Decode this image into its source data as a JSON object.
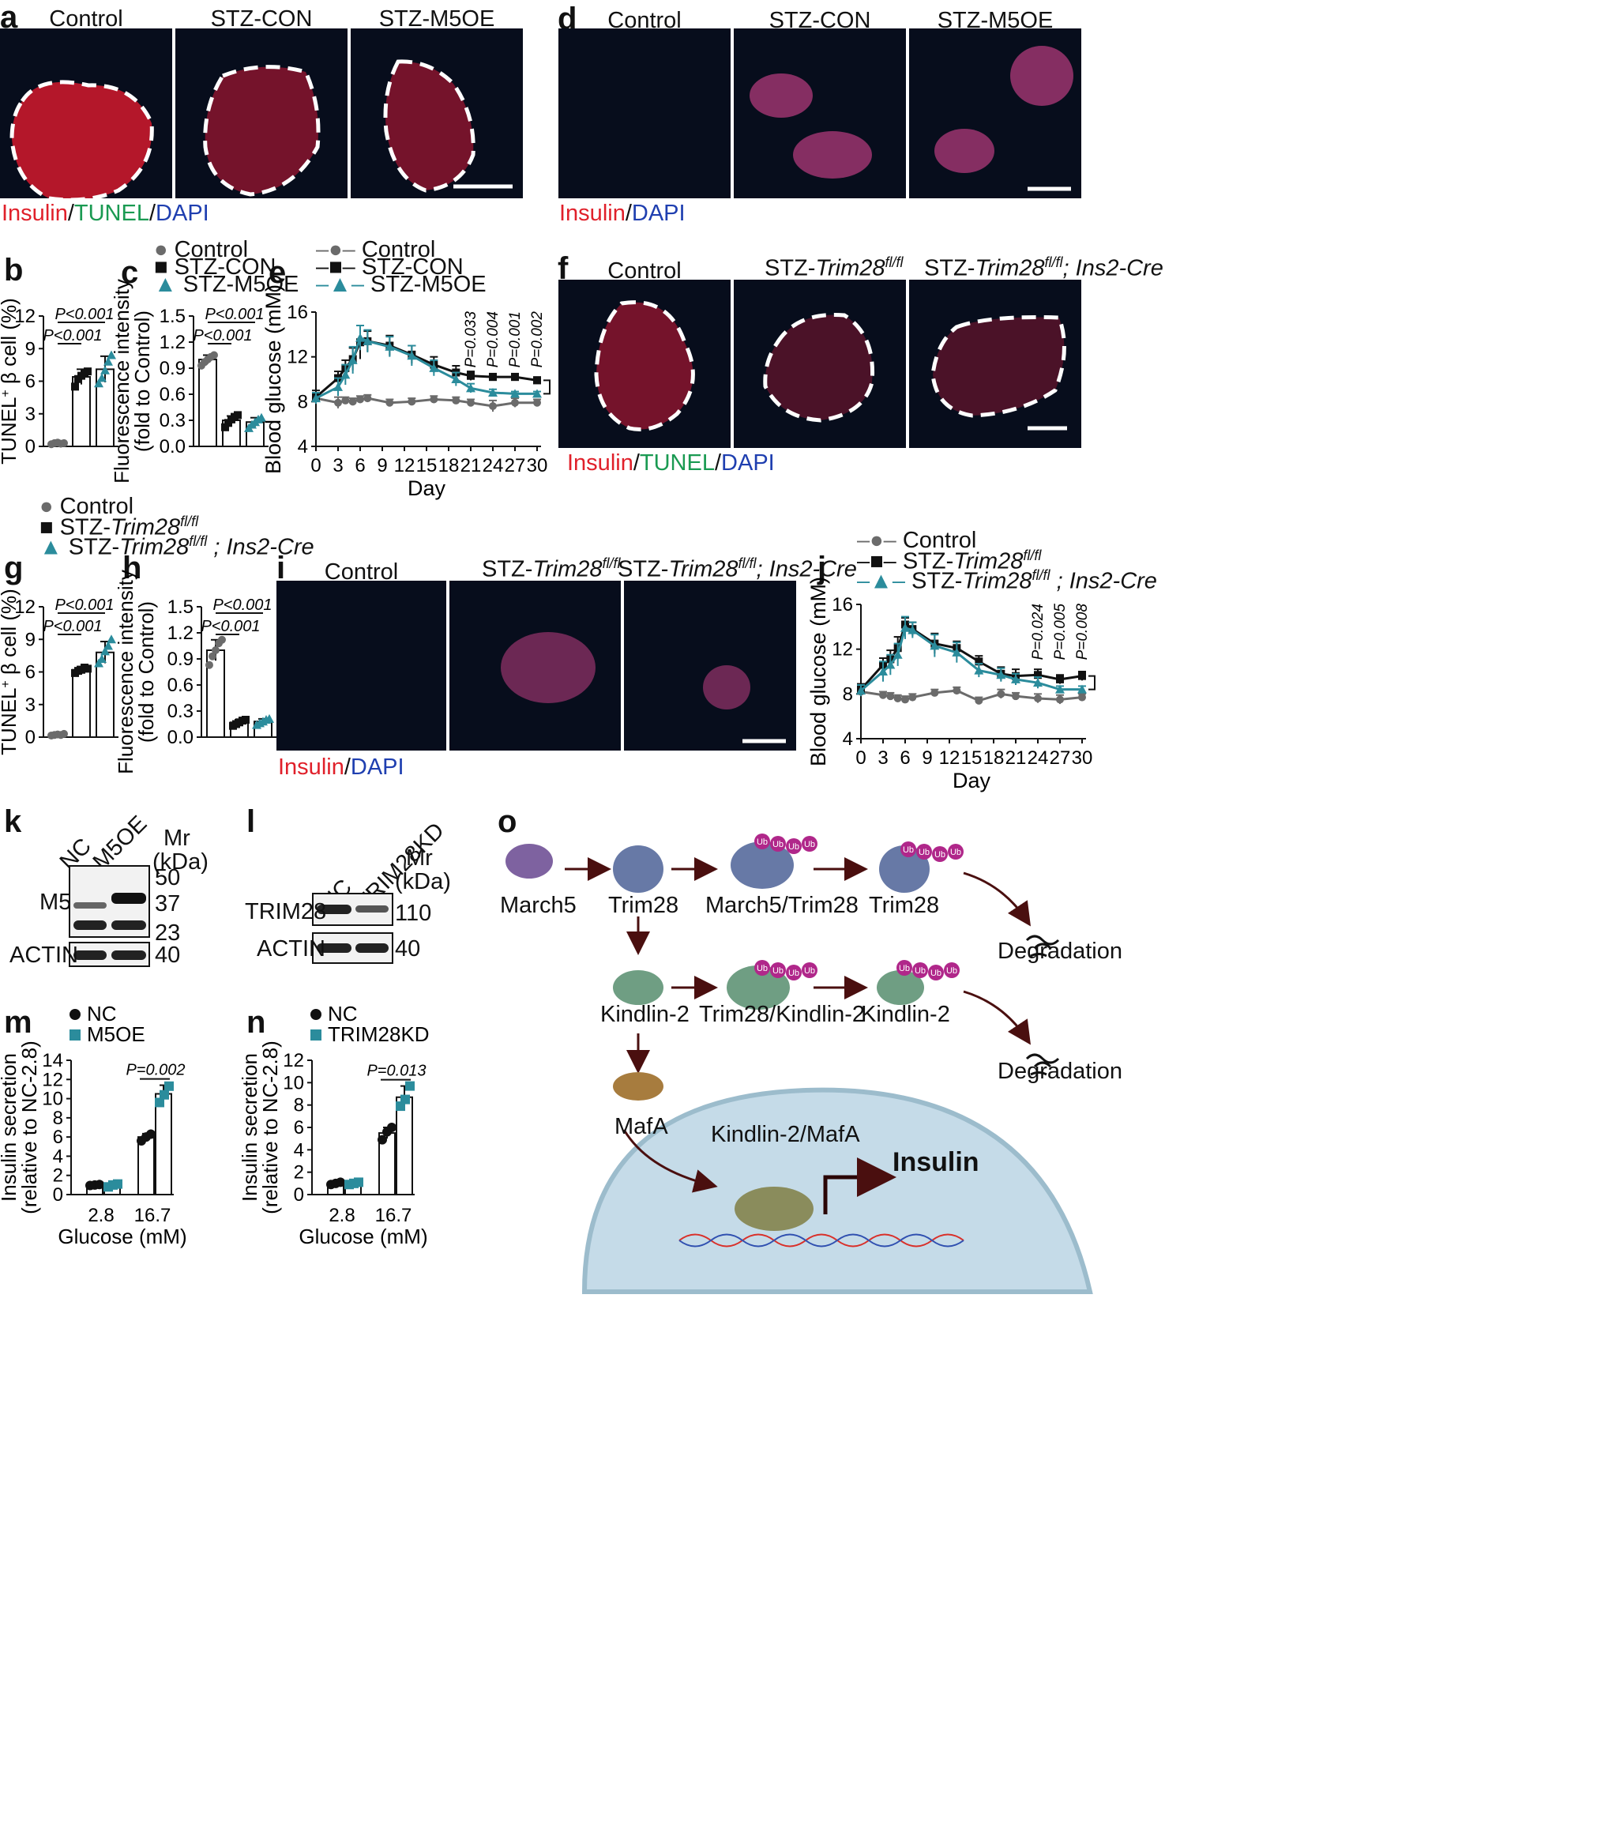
{
  "panel_letters": {
    "a": "a",
    "b": "b",
    "c": "c",
    "d": "d",
    "e": "e",
    "f": "f",
    "g": "g",
    "h": "h",
    "i": "i",
    "j": "j",
    "k": "k",
    "l": "l",
    "m": "m",
    "n": "n",
    "o": "o"
  },
  "panel_a": {
    "titles": [
      "Control",
      "STZ-CON",
      "STZ-M5OE"
    ],
    "stain": [
      {
        "text": "Insulin",
        "color": "#e0202a"
      },
      {
        "text": "/",
        "color": "#111111"
      },
      {
        "text": "TUNEL",
        "color": "#1a9a52"
      },
      {
        "text": "/",
        "color": "#111111"
      },
      {
        "text": "DAPI",
        "color": "#1f3fb0"
      }
    ]
  },
  "panel_d": {
    "titles": [
      "Control",
      "STZ-CON",
      "STZ-M5OE"
    ],
    "stain": [
      {
        "text": "Insulin",
        "color": "#e0202a"
      },
      {
        "text": "/",
        "color": "#111111"
      },
      {
        "text": "DAPI",
        "color": "#1f3fb0"
      }
    ]
  },
  "panel_f": {
    "title_control": "Control",
    "title_2_prefix": "STZ-",
    "title_2_italic": "Trim28",
    "title_2_sup": "fl/fl",
    "title_3_prefix": "STZ-",
    "title_3_italic": "Trim28",
    "title_3_sup": "fl/fl",
    "title_3_suffix": "; Ins2-Cre",
    "stain": [
      {
        "text": "Insulin",
        "color": "#e0202a"
      },
      {
        "text": "/",
        "color": "#111111"
      },
      {
        "text": "TUNEL",
        "color": "#1a9a52"
      },
      {
        "text": "/",
        "color": "#111111"
      },
      {
        "text": "DAPI",
        "color": "#1f3fb0"
      }
    ]
  },
  "panel_i": {
    "title_control": "Control",
    "title_2_prefix": "STZ-",
    "title_2_italic": "Trim28",
    "title_2_sup": "fl/fl",
    "title_3_prefix": "STZ-",
    "title_3_italic": "Trim28",
    "title_3_sup": "fl/fl",
    "title_3_suffix": "; Ins2-Cre",
    "stain": [
      {
        "text": "Insulin",
        "color": "#e0202a"
      },
      {
        "text": "/",
        "color": "#111111"
      },
      {
        "text": "DAPI",
        "color": "#1f3fb0"
      }
    ]
  },
  "legend_bc": [
    "Control",
    "STZ-CON",
    "STZ-M5OE"
  ],
  "legend_e": [
    "Control",
    "STZ-CON",
    "STZ-M5OE"
  ],
  "legend_gh": {
    "control": "Control",
    "g2_prefix": "STZ-",
    "g2_italic": "Trim28",
    "g2_sup": "fl/fl",
    "g3_prefix": "STZ-",
    "g3_italic": "Trim28",
    "g3_sup": "fl/fl",
    "g3_suffix": " ; Ins2-Cre"
  },
  "legend_j": {
    "control": "Control",
    "j2_prefix": "STZ-",
    "j2_italic": "Trim28",
    "j2_sup": "fl/fl",
    "j3_prefix": "STZ-",
    "j3_italic": "Trim28",
    "j3_sup": "fl/fl",
    "j3_suffix": " ; Ins2-Cre"
  },
  "colors": {
    "control": "#6b6b6b",
    "stz": "#111111",
    "treat": "#2b8c9c",
    "arrow": "#4a0f0f",
    "ub": "#b0278a",
    "cell": "#c5dbe8",
    "cell_edge": "#9cbccc"
  },
  "chart_data": [
    {
      "panel": "b",
      "type": "bar",
      "title": "",
      "ylabel": "TUNEL+ β cell (%)",
      "ylabel_main": "TUNEL",
      "ylabel_sup": "+",
      "ylabel_rest": " β cell (%)",
      "categories": [
        "Control",
        "STZ-CON",
        "STZ-M5OE"
      ],
      "values": [
        0.3,
        6.4,
        7.1
      ],
      "errors": [
        0.1,
        0.7,
        1.2
      ],
      "points": [
        [
          0.2,
          0.3,
          0.35,
          0.25,
          0.3
        ],
        [
          5.5,
          6.2,
          6.5,
          6.8,
          6.9
        ],
        [
          5.8,
          6.3,
          7.0,
          7.8,
          8.4
        ]
      ],
      "ylim": [
        0,
        12
      ],
      "yticks": [
        "0",
        "3",
        "6",
        "9",
        "12"
      ],
      "pvalues": [
        {
          "text": "P<0.001",
          "from": 0,
          "to": 1
        },
        {
          "text": "P<0.001",
          "from": 0,
          "to": 2
        }
      ]
    },
    {
      "panel": "c",
      "type": "bar",
      "title": "",
      "ylabel": "Fluorescence intensity (fold to Control)",
      "ylabel_line1": "Fluorescence intensity",
      "ylabel_line2": "(fold to Control)",
      "categories": [
        "Control",
        "STZ-CON",
        "STZ-M5OE"
      ],
      "values": [
        1.0,
        0.3,
        0.28
      ],
      "errors": [
        0.05,
        0.05,
        0.05
      ],
      "points": [
        [
          0.93,
          0.97,
          1.0,
          1.03,
          1.05
        ],
        [
          0.22,
          0.27,
          0.31,
          0.34,
          0.36
        ],
        [
          0.21,
          0.25,
          0.28,
          0.31,
          0.33
        ]
      ],
      "ylim": [
        0,
        1.5
      ],
      "yticks": [
        "0.0",
        "0.3",
        "0.6",
        "0.9",
        "1.2",
        "1.5"
      ],
      "pvalues": [
        {
          "text": "P<0.001",
          "from": 0,
          "to": 1
        },
        {
          "text": "P<0.001",
          "from": 0,
          "to": 2
        }
      ]
    },
    {
      "panel": "e",
      "type": "line",
      "title": "",
      "xlabel": "Day",
      "ylabel": "Blood glucose (mM)",
      "x": [
        0,
        3,
        4,
        5,
        6,
        7,
        10,
        13,
        16,
        19,
        21,
        24,
        27,
        30
      ],
      "xticks": [
        "0",
        "3",
        "6",
        "9",
        "12",
        "15",
        "18",
        "21",
        "24",
        "27",
        "30"
      ],
      "yticks": [
        "4",
        "8",
        "12",
        "16"
      ],
      "ylim": [
        4,
        16
      ],
      "series": [
        {
          "name": "Control",
          "values": [
            8.3,
            7.9,
            8.1,
            8.0,
            8.2,
            8.3,
            7.9,
            8.0,
            8.2,
            8.1,
            7.9,
            7.6,
            7.9,
            7.9
          ],
          "err": [
            0.3,
            0.5,
            0.3,
            0.3,
            0.3,
            0.3,
            0.3,
            0.3,
            0.3,
            0.3,
            0.3,
            0.5,
            0.4,
            0.3
          ]
        },
        {
          "name": "STZ-CON",
          "values": [
            8.4,
            10.1,
            11.0,
            11.8,
            13.3,
            13.4,
            13.0,
            12.2,
            11.3,
            10.6,
            10.3,
            10.2,
            10.2,
            9.9
          ],
          "err": [
            0.6,
            0.6,
            0.7,
            1.0,
            1.5,
            0.9,
            0.9,
            0.8,
            0.7,
            0.6,
            0.4,
            0.3,
            0.3,
            0.3
          ]
        },
        {
          "name": "STZ-M5OE",
          "values": [
            8.3,
            9.3,
            10.4,
            11.7,
            13.7,
            13.4,
            12.9,
            12.1,
            11.0,
            10.0,
            9.2,
            8.8,
            8.7,
            8.7
          ],
          "err": [
            0.5,
            0.8,
            0.9,
            1.2,
            1.1,
            1.0,
            0.9,
            0.9,
            0.7,
            0.6,
            0.4,
            0.3,
            0.2,
            0.2
          ]
        }
      ],
      "pvalues": [
        "P=0.033",
        "P=0.004",
        "P=0.001",
        "P=0.002"
      ]
    },
    {
      "panel": "g",
      "type": "bar",
      "title": "",
      "ylabel": "TUNEL+ β cell (%)",
      "ylabel_main": "TUNEL",
      "ylabel_sup": "+",
      "ylabel_rest": " β cell (%)",
      "categories": [
        "Control",
        "STZ-Trim28 fl/fl",
        "STZ-Trim28 fl/fl; Ins2-Cre"
      ],
      "values": [
        0.2,
        6.2,
        7.8
      ],
      "errors": [
        0.1,
        0.3,
        1.0
      ],
      "points": [
        [
          0.15,
          0.2,
          0.25,
          0.2,
          0.3
        ],
        [
          5.9,
          6.1,
          6.2,
          6.4,
          6.3
        ],
        [
          6.8,
          7.2,
          7.9,
          8.4,
          9.0
        ]
      ],
      "ylim": [
        0,
        12
      ],
      "yticks": [
        "0",
        "3",
        "6",
        "9",
        "12"
      ],
      "pvalues": [
        {
          "text": "P<0.001",
          "from": 0,
          "to": 1
        },
        {
          "text": "P<0.001",
          "from": 0,
          "to": 2
        }
      ]
    },
    {
      "panel": "h",
      "type": "bar",
      "title": "",
      "ylabel": "Fluorescence intensity (fold to Control)",
      "ylabel_line1": "Fluorescence intensity",
      "ylabel_line2": "(fold to Control)",
      "categories": [
        "Control",
        "STZ-Trim28 fl/fl",
        "STZ-Trim28 fl/fl; Ins2-Cre"
      ],
      "values": [
        1.0,
        0.17,
        0.18
      ],
      "errors": [
        0.12,
        0.03,
        0.03
      ],
      "points": [
        [
          0.83,
          0.93,
          1.0,
          1.08,
          1.12
        ],
        [
          0.13,
          0.15,
          0.17,
          0.19,
          0.2
        ],
        [
          0.14,
          0.16,
          0.18,
          0.2,
          0.21
        ]
      ],
      "ylim": [
        0,
        1.5
      ],
      "yticks": [
        "0.0",
        "0.3",
        "0.6",
        "0.9",
        "1.2",
        "1.5"
      ],
      "pvalues": [
        {
          "text": "P<0.001",
          "from": 0,
          "to": 1
        },
        {
          "text": "P<0.001",
          "from": 0,
          "to": 2
        }
      ]
    },
    {
      "panel": "j",
      "type": "line",
      "title": "",
      "xlabel": "Day",
      "ylabel": "Blood glucose (mM)",
      "x": [
        0,
        3,
        4,
        5,
        6,
        7,
        10,
        13,
        16,
        19,
        21,
        24,
        27,
        30
      ],
      "xticks": [
        "0",
        "3",
        "6",
        "9",
        "12",
        "15",
        "18",
        "21",
        "24",
        "27",
        "30"
      ],
      "yticks": [
        "4",
        "8",
        "12",
        "16"
      ],
      "ylim": [
        4,
        16
      ],
      "series": [
        {
          "name": "Control",
          "values": [
            8.2,
            7.9,
            7.8,
            7.6,
            7.5,
            7.7,
            8.1,
            8.3,
            7.4,
            8.0,
            7.8,
            7.6,
            7.5,
            7.7
          ],
          "err": [
            0.3,
            0.3,
            0.3,
            0.3,
            0.3,
            0.3,
            0.3,
            0.3,
            0.3,
            0.4,
            0.3,
            0.4,
            0.4,
            0.3
          ]
        },
        {
          "name": "STZ-Trim28 fl/fl",
          "values": [
            8.4,
            10.6,
            11.1,
            12.1,
            14.2,
            13.8,
            12.5,
            12.1,
            10.9,
            9.8,
            9.6,
            9.7,
            9.3,
            9.6
          ],
          "err": [
            0.5,
            0.6,
            0.8,
            1.0,
            0.6,
            0.6,
            0.9,
            0.6,
            0.5,
            0.6,
            0.6,
            0.5,
            0.4,
            0.4
          ]
        },
        {
          "name": "STZ-Trim28 fl/fl; Ins2-Cre",
          "values": [
            8.3,
            10.0,
            10.6,
            11.5,
            13.9,
            13.7,
            12.3,
            11.7,
            10.1,
            9.7,
            9.3,
            9.0,
            8.4,
            8.4
          ],
          "err": [
            0.5,
            0.9,
            0.9,
            1.0,
            1.0,
            0.7,
            1.0,
            0.9,
            0.6,
            0.6,
            0.5,
            0.5,
            0.3,
            0.3
          ]
        }
      ],
      "pvalues": [
        "P=0.024",
        "P=0.005",
        "P=0.008"
      ]
    },
    {
      "panel": "m",
      "type": "bar",
      "title": "",
      "ylabel": "Insulin secretion (relative to NC-2.8)",
      "ylabel_line1": "Insulin secretion",
      "ylabel_line2": "(relative to NC-2.8)",
      "xlabel": "Glucose (mM)",
      "groups": [
        "2.8",
        "16.7"
      ],
      "series": [
        {
          "name": "NC",
          "values": [
            1.0,
            6.0
          ],
          "errors": [
            0.1,
            0.35
          ],
          "points": [
            [
              0.95,
              1.0,
              1.05
            ],
            [
              5.6,
              6.0,
              6.3
            ]
          ]
        },
        {
          "name": "M5OE",
          "values": [
            1.0,
            10.5
          ],
          "errors": [
            0.15,
            0.9
          ],
          "points": [
            [
              0.8,
              1.0,
              1.1
            ],
            [
              9.6,
              10.4,
              11.3
            ]
          ]
        }
      ],
      "ylim": [
        0,
        14
      ],
      "yticks": [
        "0",
        "2",
        "4",
        "6",
        "8",
        "10",
        "12",
        "14"
      ],
      "pvalue": "P=0.002"
    },
    {
      "panel": "n",
      "type": "bar",
      "title": "",
      "ylabel": "Insulin secretion (relative to NC-2.8)",
      "ylabel_line1": "Insulin secretion",
      "ylabel_line2": "(relative to NC-2.8)",
      "xlabel": "Glucose (mM)",
      "groups": [
        "2.8",
        "16.7"
      ],
      "series": [
        {
          "name": "NC",
          "values": [
            1.0,
            5.5
          ],
          "errors": [
            0.1,
            0.5
          ],
          "points": [
            [
              0.9,
              1.0,
              1.1
            ],
            [
              4.9,
              5.6,
              6.0
            ]
          ]
        },
        {
          "name": "TRIM28KD",
          "values": [
            1.0,
            8.7
          ],
          "errors": [
            0.12,
            1.0
          ],
          "points": [
            [
              0.9,
              1.0,
              1.1
            ],
            [
              7.9,
              8.5,
              9.7
            ]
          ]
        }
      ],
      "ylim": [
        0,
        12
      ],
      "yticks": [
        "0",
        "2",
        "4",
        "6",
        "8",
        "10",
        "12"
      ],
      "pvalue": "P=0.013"
    }
  ],
  "panel_k": {
    "lanes": [
      "NC",
      "M5OE"
    ],
    "mr": "Mr",
    "kda": "(kDa)",
    "row_labels": [
      "M5",
      "ACTIN"
    ],
    "markers": [
      "50",
      "37",
      "23",
      "40"
    ]
  },
  "panel_l": {
    "lanes": [
      "NC",
      "TRIM28KD"
    ],
    "mr": "Mr",
    "kda": "(kDa)",
    "row_labels": [
      "TRIM28",
      "ACTIN"
    ],
    "markers": [
      "110",
      "40"
    ]
  },
  "panel_o": {
    "march5": "March5",
    "trim28": "Trim28",
    "complex1": "March5/Trim28",
    "trim28_ub": "Trim28",
    "kindlin2": "Kindlin-2",
    "complex2": "Trim28/Kindlin-2",
    "kindlin2_ub": "Kindlin-2",
    "degradation": "Degradation",
    "mafa": "MafA",
    "complex3": "Kindlin-2/MafA",
    "insulin": "Insulin",
    "ub": "Ub"
  }
}
